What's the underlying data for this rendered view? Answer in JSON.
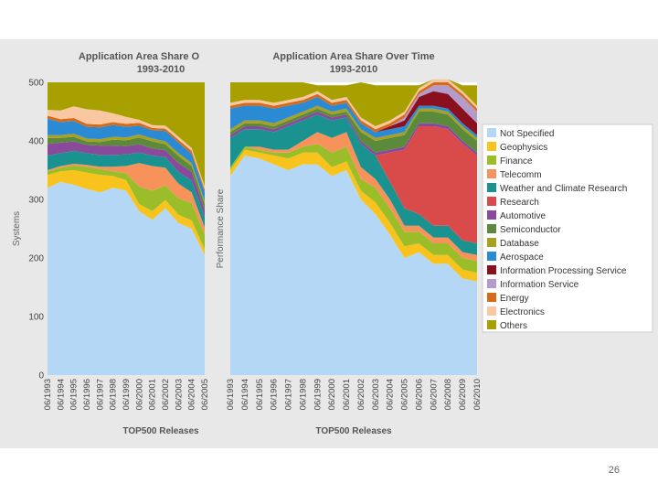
{
  "slide": {
    "page_number": "26"
  },
  "legend_items": [
    {
      "label": "Not Specified",
      "color": "#b3d7f5"
    },
    {
      "label": "Geophysics",
      "color": "#f7c31c"
    },
    {
      "label": "Finance",
      "color": "#9cbd2a"
    },
    {
      "label": "Telecomm",
      "color": "#f7935a"
    },
    {
      "label": "Weather and Climate Research",
      "color": "#1a9390"
    },
    {
      "label": "Research",
      "color": "#d94a4a"
    },
    {
      "label": "Automotive",
      "color": "#8a4a9c"
    },
    {
      "label": "Semiconductor",
      "color": "#5a8a3a"
    },
    {
      "label": "Database",
      "color": "#a8a020"
    },
    {
      "label": "Aerospace",
      "color": "#2a8ad4"
    },
    {
      "label": "Information Processing Service",
      "color": "#8a1020"
    },
    {
      "label": "Information Service",
      "color": "#b39cc9"
    },
    {
      "label": "Energy",
      "color": "#d46a1a"
    },
    {
      "label": "Electronics",
      "color": "#f9c8a0"
    },
    {
      "label": "Others",
      "color": "#a8a000"
    }
  ],
  "chart_data": [
    {
      "type": "area",
      "stacked": true,
      "title": "Application Area Share O",
      "subtitle": "1993-2010",
      "xlabel": "TOP500 Releases",
      "ylabel": "Systems",
      "ylim": [
        0,
        500
      ],
      "yticks": [
        0,
        100,
        200,
        300,
        400,
        500
      ],
      "categories": [
        "06/1993",
        "06/1994",
        "06/1995",
        "06/1996",
        "06/1997",
        "06/1998",
        "06/1999",
        "06/2000",
        "06/2001",
        "06/2002",
        "06/2003",
        "06/2004",
        "06/2005"
      ],
      "series": [
        {
          "name": "Not Specified",
          "values": [
            320,
            330,
            325,
            318,
            312,
            320,
            315,
            280,
            265,
            285,
            260,
            250,
            205
          ]
        },
        {
          "name": "Geophysics",
          "values": [
            22,
            18,
            25,
            28,
            30,
            20,
            18,
            12,
            15,
            14,
            14,
            14,
            10
          ]
        },
        {
          "name": "Finance",
          "values": [
            6,
            6,
            8,
            10,
            10,
            8,
            12,
            30,
            35,
            25,
            28,
            30,
            25
          ]
        },
        {
          "name": "Telecomm",
          "values": [
            2,
            3,
            3,
            3,
            4,
            8,
            12,
            40,
            42,
            30,
            25,
            18,
            12
          ]
        },
        {
          "name": "Weather and Climate Research",
          "values": [
            25,
            22,
            22,
            20,
            20,
            20,
            20,
            18,
            18,
            18,
            20,
            20,
            18
          ]
        },
        {
          "name": "Research",
          "values": [
            0,
            0,
            0,
            0,
            0,
            0,
            0,
            0,
            0,
            0,
            0,
            0,
            0
          ]
        },
        {
          "name": "Automotive",
          "values": [
            20,
            18,
            16,
            14,
            16,
            16,
            14,
            14,
            12,
            12,
            15,
            15,
            12
          ]
        },
        {
          "name": "Semiconductor",
          "values": [
            10,
            8,
            8,
            6,
            6,
            10,
            10,
            12,
            12,
            10,
            12,
            10,
            10
          ]
        },
        {
          "name": "Database",
          "values": [
            5,
            5,
            5,
            5,
            5,
            5,
            5,
            5,
            5,
            5,
            5,
            5,
            5
          ]
        },
        {
          "name": "Aerospace",
          "values": [
            28,
            22,
            22,
            20,
            20,
            20,
            18,
            15,
            14,
            18,
            18,
            16,
            15
          ]
        },
        {
          "name": "Information Processing Service",
          "values": [
            0,
            0,
            0,
            0,
            0,
            0,
            0,
            0,
            0,
            0,
            0,
            0,
            0
          ]
        },
        {
          "name": "Information Service",
          "values": [
            0,
            0,
            0,
            0,
            0,
            0,
            0,
            0,
            0,
            0,
            0,
            0,
            0
          ]
        },
        {
          "name": "Energy",
          "values": [
            5,
            5,
            5,
            5,
            5,
            5,
            5,
            5,
            4,
            4,
            5,
            5,
            5
          ]
        },
        {
          "name": "Electronics",
          "values": [
            10,
            15,
            20,
            25,
            24,
            15,
            12,
            5,
            5,
            5,
            5,
            5,
            5
          ]
        },
        {
          "name": "Others",
          "values": [
            47,
            48,
            41,
            46,
            48,
            53,
            59,
            64,
            73,
            74,
            93,
            112,
            178
          ]
        }
      ]
    },
    {
      "type": "area",
      "stacked": true,
      "title": "Application Area Share Over Time",
      "subtitle": "1993-2010",
      "xlabel": "TOP500 Releases",
      "ylabel": "Performance Share",
      "ylim": [
        0,
        100
      ],
      "categories": [
        "06/1993",
        "06/1994",
        "06/1995",
        "06/1996",
        "06/1997",
        "06/1998",
        "06/1999",
        "06/2000",
        "06/2001",
        "06/2002",
        "06/2003",
        "06/2004",
        "06/2005",
        "06/2006",
        "06/2007",
        "06/2008",
        "06/2009",
        "06/2010"
      ],
      "series": [
        {
          "name": "Not Specified",
          "values": [
            68,
            75,
            74,
            72,
            70,
            72,
            72,
            68,
            70,
            60,
            55,
            48,
            40,
            42,
            38,
            38,
            33,
            32
          ]
        },
        {
          "name": "Geophysics",
          "values": [
            2,
            2,
            2,
            3,
            4,
            4,
            4,
            3,
            3,
            3,
            4,
            4,
            4,
            3,
            3,
            3,
            3,
            3
          ]
        },
        {
          "name": "Finance",
          "values": [
            1,
            1,
            1,
            1,
            2,
            2,
            3,
            5,
            5,
            4,
            5,
            5,
            5,
            4,
            4,
            4,
            4,
            4
          ]
        },
        {
          "name": "Telecomm",
          "values": [
            0,
            0,
            1,
            1,
            1,
            2,
            4,
            5,
            5,
            4,
            3,
            3,
            2,
            2,
            2,
            2,
            2,
            2
          ]
        },
        {
          "name": "Weather and Climate Research",
          "values": [
            10,
            6,
            6,
            6,
            8,
            7,
            6,
            6,
            5,
            8,
            8,
            6,
            6,
            4,
            4,
            4,
            4,
            4
          ]
        },
        {
          "name": "Research",
          "values": [
            0,
            0,
            0,
            0,
            0,
            0,
            0,
            0,
            0,
            0,
            0,
            10,
            20,
            30,
            34,
            33,
            33,
            30
          ]
        },
        {
          "name": "Automotive",
          "values": [
            1,
            1,
            1,
            1,
            1,
            1,
            1,
            1,
            1,
            1,
            1,
            1,
            1,
            1,
            1,
            1,
            1,
            1
          ]
        },
        {
          "name": "Semiconductor",
          "values": [
            1,
            1,
            1,
            1,
            1,
            1,
            1,
            1,
            1,
            3,
            4,
            4,
            4,
            4,
            4,
            4,
            4,
            4
          ]
        },
        {
          "name": "Database",
          "values": [
            1,
            1,
            1,
            1,
            1,
            1,
            1,
            1,
            1,
            1,
            1,
            1,
            1,
            1,
            1,
            1,
            1,
            1
          ]
        },
        {
          "name": "Aerospace",
          "values": [
            7,
            5,
            5,
            5,
            4,
            3,
            3,
            2,
            2,
            2,
            2,
            2,
            2,
            1,
            1,
            1,
            1,
            1
          ]
        },
        {
          "name": "Information Processing Service",
          "values": [
            0,
            0,
            0,
            0,
            0,
            0,
            0,
            0,
            0,
            0,
            0,
            1,
            2,
            3,
            5,
            5,
            5,
            4
          ]
        },
        {
          "name": "Information Service",
          "values": [
            0,
            0,
            0,
            0,
            0,
            0,
            0,
            0,
            0,
            0,
            0,
            0,
            1,
            1,
            2,
            3,
            4,
            4
          ]
        },
        {
          "name": "Energy",
          "values": [
            1,
            1,
            1,
            1,
            1,
            1,
            1,
            1,
            1,
            1,
            1,
            1,
            1,
            1,
            1,
            1,
            1,
            1
          ]
        },
        {
          "name": "Electronics",
          "values": [
            1,
            1,
            1,
            1,
            1,
            1,
            1,
            1,
            1,
            1,
            1,
            1,
            1,
            1,
            1,
            1,
            1,
            1
          ]
        },
        {
          "name": "Others",
          "values": [
            7,
            6,
            6,
            7,
            6,
            5,
            2,
            5,
            4,
            12,
            14,
            12,
            9,
            1,
            0,
            0,
            2,
            7
          ]
        }
      ]
    }
  ]
}
